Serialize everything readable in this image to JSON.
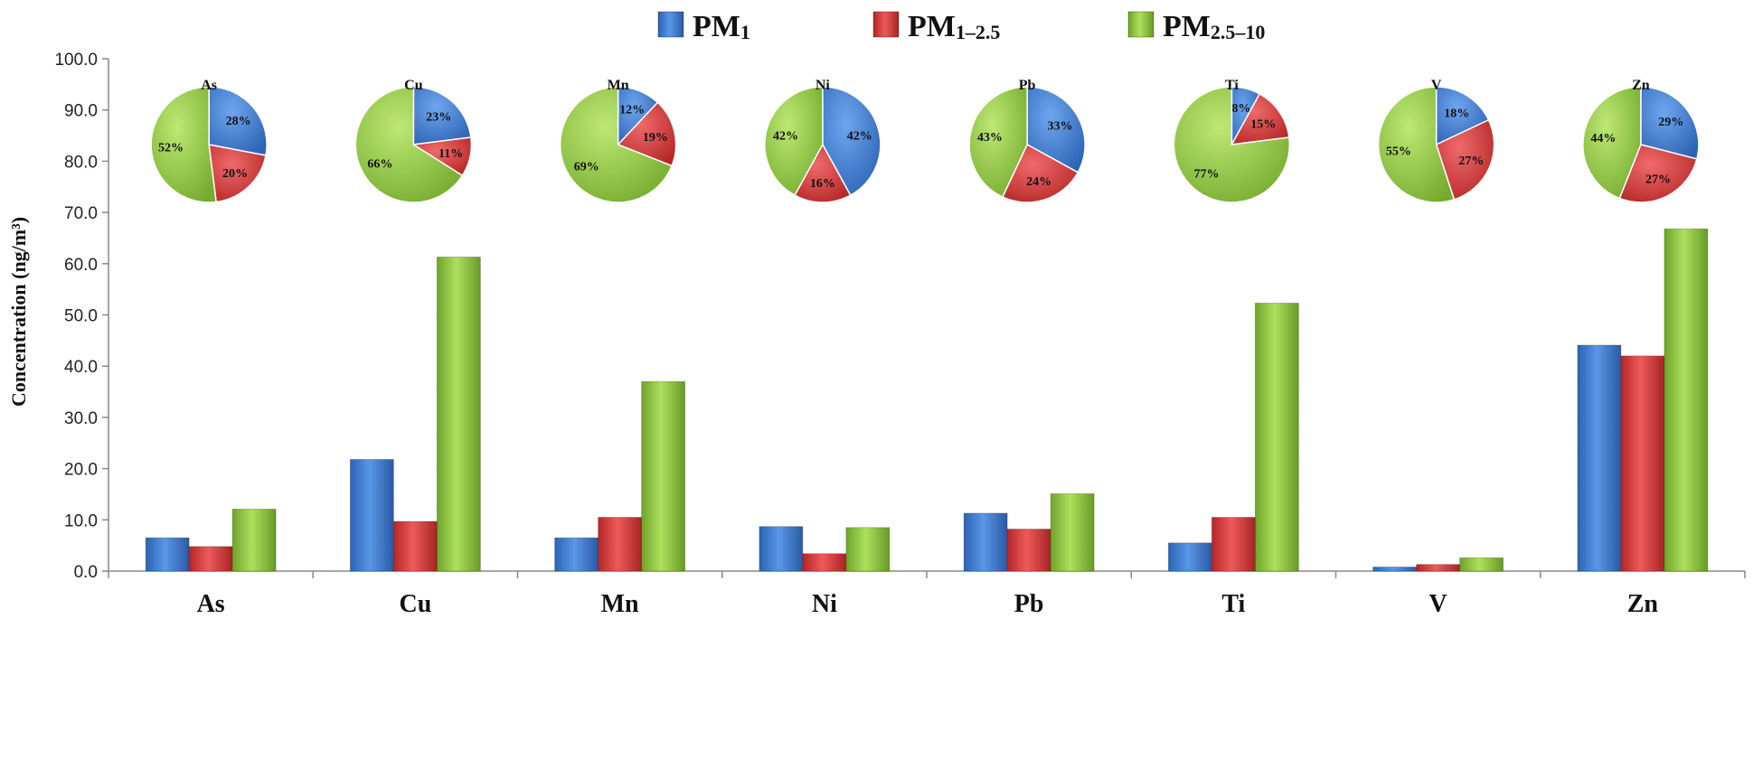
{
  "chart_data": {
    "type": "bar",
    "categories": [
      "As",
      "Cu",
      "Mn",
      "Ni",
      "Pb",
      "Ti",
      "V",
      "Zn"
    ],
    "series": [
      {
        "name": "PM",
        "subscript": "1",
        "color": "#3f7fd3",
        "values": [
          6.5,
          21.8,
          6.5,
          8.7,
          11.3,
          5.5,
          0.8,
          44.1
        ]
      },
      {
        "name": "PM",
        "subscript": "1–2.5",
        "color": "#d73a3a",
        "values": [
          4.8,
          9.7,
          10.5,
          3.4,
          8.2,
          10.5,
          1.3,
          42.0
        ]
      },
      {
        "name": "PM",
        "subscript": "2.5–10",
        "color": "#8fc63f",
        "values": [
          12.1,
          61.3,
          37.0,
          8.5,
          15.1,
          52.3,
          2.6,
          66.8
        ]
      }
    ],
    "ylabel": "Concentration (ng/m³)",
    "ylim": [
      0,
      100
    ],
    "yticks": [
      "0.0",
      "10.0",
      "20.0",
      "30.0",
      "40.0",
      "50.0",
      "60.0",
      "70.0",
      "80.0",
      "90.0",
      "100.0"
    ],
    "legend_position": "top-center",
    "grid": false,
    "pies": [
      {
        "title": "As",
        "percents": [
          28,
          20,
          52
        ],
        "labels": [
          "28%",
          "20%",
          "52%"
        ]
      },
      {
        "title": "Cu",
        "percents": [
          23,
          11,
          66
        ],
        "labels": [
          "23%",
          "11%",
          "66%"
        ]
      },
      {
        "title": "Mn",
        "percents": [
          12,
          19,
          69
        ],
        "labels": [
          "12%",
          "19%",
          "69%"
        ]
      },
      {
        "title": "Ni",
        "percents": [
          42,
          16,
          42
        ],
        "labels": [
          "42%",
          "16%",
          "42%"
        ]
      },
      {
        "title": "Pb",
        "percents": [
          33,
          24,
          43
        ],
        "labels": [
          "33%",
          "24%",
          "43%"
        ]
      },
      {
        "title": "Ti",
        "percents": [
          8,
          15,
          77
        ],
        "labels": [
          "8%",
          "15%",
          "77%"
        ]
      },
      {
        "title": "V",
        "percents": [
          18,
          27,
          55
        ],
        "labels": [
          "18%",
          "27%",
          "55%"
        ]
      },
      {
        "title": "Zn",
        "percents": [
          29,
          27,
          44
        ],
        "labels": [
          "29%",
          "27%",
          "44%"
        ]
      }
    ]
  }
}
